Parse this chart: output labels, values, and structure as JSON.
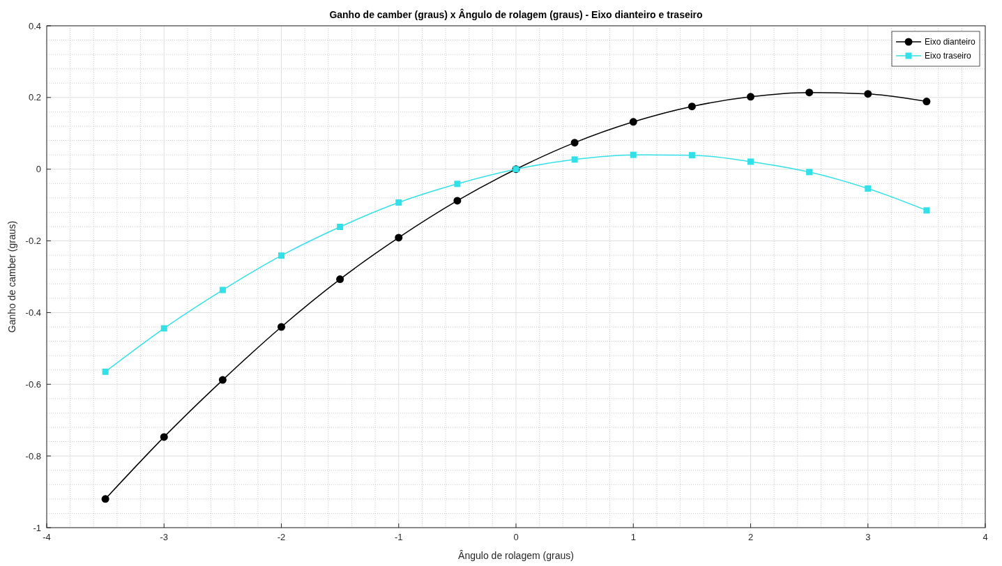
{
  "chart_data": {
    "type": "line",
    "title": "Ganho de camber (graus) x Ângulo de rolagem (graus) - Eixo dianteiro e traseiro",
    "xlabel": "Ângulo de rolagem (graus)",
    "ylabel": "Ganho de camber (graus)",
    "x": [
      -3.5,
      -3,
      -2.5,
      -2,
      -1.5,
      -1,
      -0.5,
      0,
      0.5,
      1,
      1.5,
      2,
      2.5,
      3,
      3.5
    ],
    "series": [
      {
        "name": "Eixo dianteiro",
        "color": "#000000",
        "marker": "circle",
        "values": [
          -0.92,
          -0.747,
          -0.588,
          -0.44,
          -0.307,
          -0.191,
          -0.088,
          0,
          0.074,
          0.132,
          0.175,
          0.202,
          0.214,
          0.21,
          0.189
        ]
      },
      {
        "name": "Eixo traseiro",
        "color": "#33e0e8",
        "marker": "square",
        "values": [
          -0.565,
          -0.444,
          -0.337,
          -0.241,
          -0.161,
          -0.093,
          -0.041,
          0,
          0.027,
          0.04,
          0.039,
          0.021,
          -0.008,
          -0.054,
          -0.115
        ]
      }
    ],
    "xlim": [
      -4,
      4
    ],
    "xticks": [
      -4,
      -3,
      -2,
      -1,
      0,
      1,
      2,
      3,
      4
    ],
    "ylim": [
      -1,
      0.4
    ],
    "yticks": [
      -1,
      -0.8,
      -0.6,
      -0.4,
      -0.2,
      0,
      0.2,
      0.4
    ],
    "grid": true,
    "legend": "top right",
    "line_style": "solid"
  }
}
